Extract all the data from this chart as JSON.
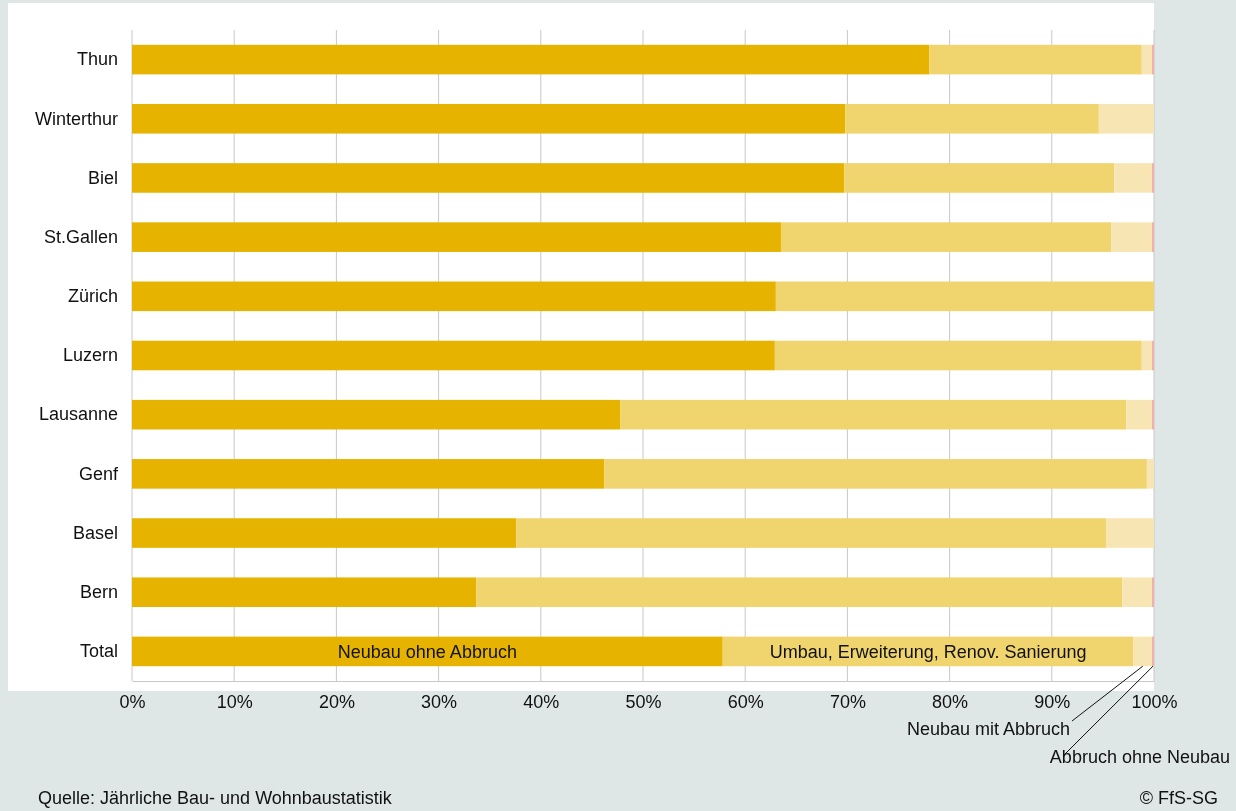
{
  "chart_data": {
    "type": "bar",
    "orientation": "horizontal",
    "stacked": true,
    "categories": [
      "Thun",
      "Winterthur",
      "Biel",
      "St.Gallen",
      "Zürich",
      "Luzern",
      "Lausanne",
      "Genf",
      "Basel",
      "Bern",
      "Total"
    ],
    "series": [
      {
        "name": "Neubau ohne Abbruch",
        "color": "#e6b400",
        "values": [
          78.0,
          69.8,
          69.7,
          63.5,
          63.0,
          62.9,
          47.8,
          46.2,
          37.6,
          33.7,
          57.8
        ]
      },
      {
        "name": "Umbau, Erweiterung, Renov. Sanierung",
        "color": "#f0d46e",
        "values": [
          20.8,
          24.8,
          26.4,
          32.3,
          37.0,
          35.9,
          49.5,
          53.1,
          57.7,
          63.2,
          40.2
        ]
      },
      {
        "name": "Neubau mit Abbruch",
        "color": "#f7e6b4",
        "values": [
          1.0,
          5.4,
          3.7,
          4.0,
          0,
          1.0,
          2.5,
          0.7,
          4.7,
          2.9,
          1.8
        ]
      },
      {
        "name": "Abbruch ohne Neubau",
        "color": "#f4b0a8",
        "values": [
          0.2,
          0,
          0.2,
          0.2,
          0,
          0.2,
          0.2,
          0,
          0,
          0.2,
          0.2
        ]
      }
    ],
    "xlim": [
      0,
      100
    ],
    "xticks": [
      {
        "value": 0,
        "label": "0%"
      },
      {
        "value": 10,
        "label": "10%"
      },
      {
        "value": 20,
        "label": "20%"
      },
      {
        "value": 30,
        "label": "30%"
      },
      {
        "value": 40,
        "label": "40%"
      },
      {
        "value": 50,
        "label": "50%"
      },
      {
        "value": 60,
        "label": "60%"
      },
      {
        "value": 70,
        "label": "70%"
      },
      {
        "value": 80,
        "label": "80%"
      },
      {
        "value": 90,
        "label": "90%"
      },
      {
        "value": 100,
        "label": "100%"
      }
    ],
    "grid": "x",
    "legend": false,
    "annotations": [
      "Quelle: Jährliche Bau- und Wohnbaustatistik",
      "© FfS-SG"
    ]
  }
}
